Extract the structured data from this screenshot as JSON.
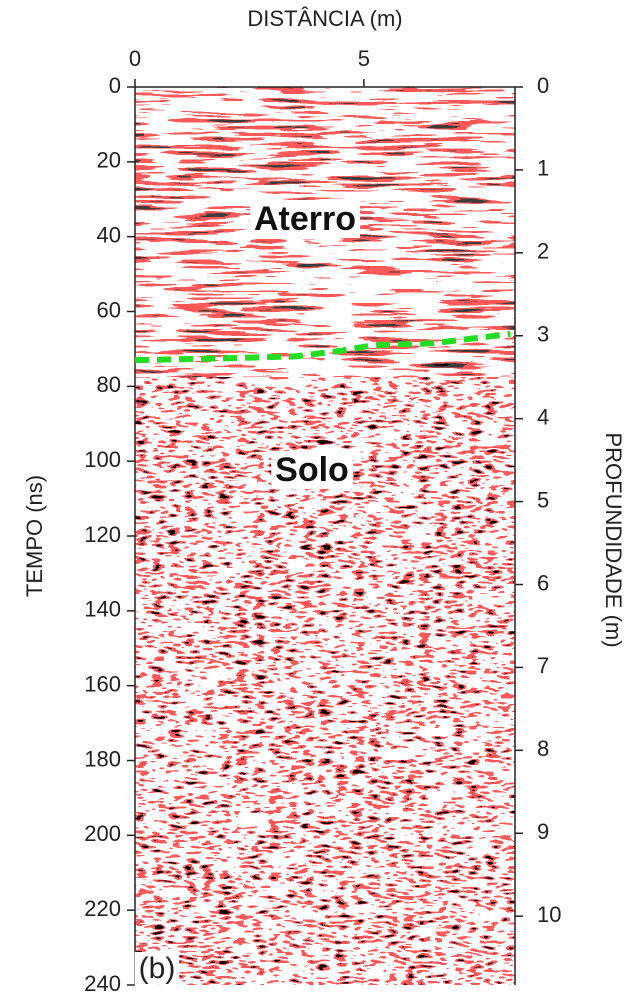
{
  "chart_data": {
    "type": "radargram",
    "xlabel": "DISTÂNCIA (m)",
    "ylabel": "TEMPO (ns)",
    "y2label": "PROFUNDIDADE (m)",
    "xlim": [
      0,
      8.3
    ],
    "xticks": [
      0,
      5
    ],
    "ylim": [
      0,
      240
    ],
    "yticks": [
      0,
      20,
      40,
      60,
      80,
      100,
      120,
      140,
      160,
      180,
      200,
      220,
      240
    ],
    "y2lim": [
      0,
      10.83
    ],
    "y2ticks": [
      0,
      1,
      2,
      3,
      4,
      5,
      6,
      7,
      8,
      9,
      10
    ],
    "series": [
      {
        "color": "#22dd22",
        "x": [
          0,
          2,
          3.5,
          4.5,
          5.2,
          6.5,
          8.2
        ],
        "values": [
          73,
          72.5,
          72,
          70.5,
          69,
          68.5,
          66
        ]
      }
    ],
    "annotations": [
      "Aterro",
      "Solo",
      "(b)"
    ]
  }
}
